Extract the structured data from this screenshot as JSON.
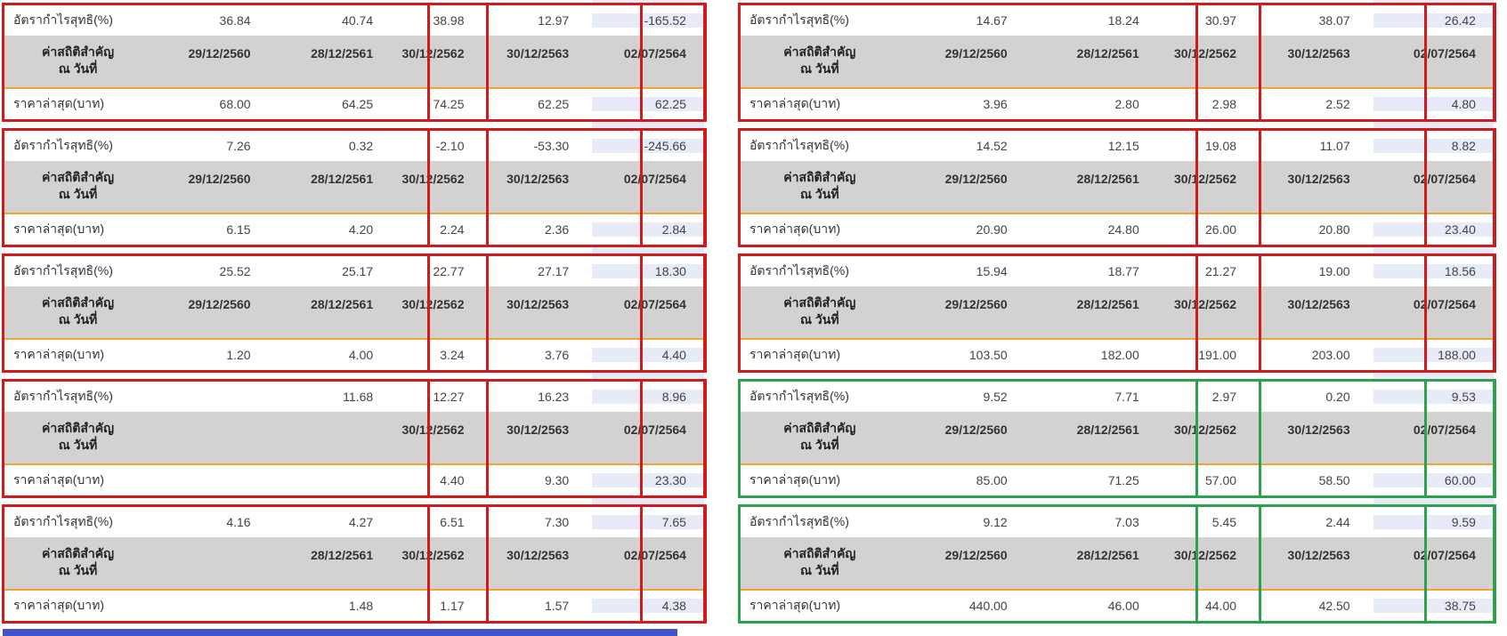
{
  "labels": {
    "margin": "อัตรากำไรสุทธิ(%)",
    "stats_line1": "ค่าสถิติสำคัญ",
    "stats_line2": "ณ วันที่",
    "price": "ราคาล่าสุด(บาท)"
  },
  "colors": {
    "red": "#cf1b1b",
    "green": "#2ba24b",
    "header_gray": "#d2d2d2",
    "orange": "#f0a433",
    "lavender": "#e6ebf7",
    "bottom_bar_blue": "#4253c9"
  },
  "tables": [
    {
      "id": "left-1",
      "column": "left",
      "slot": 0,
      "accent": "red",
      "margins": [
        "36.84",
        "40.74",
        "38.98",
        "12.97",
        "-165.52"
      ],
      "dates": [
        "29/12/2560",
        "28/12/2561",
        "30/12/2562",
        "30/12/2563",
        "02/07/2564"
      ],
      "prices": [
        "68.00",
        "64.25",
        "74.25",
        "62.25",
        "62.25"
      ]
    },
    {
      "id": "left-2",
      "column": "left",
      "slot": 1,
      "accent": "red",
      "margins": [
        "7.26",
        "0.32",
        "-2.10",
        "-53.30",
        "-245.66"
      ],
      "dates": [
        "29/12/2560",
        "28/12/2561",
        "30/12/2562",
        "30/12/2563",
        "02/07/2564"
      ],
      "prices": [
        "6.15",
        "4.20",
        "2.24",
        "2.36",
        "2.84"
      ]
    },
    {
      "id": "left-3",
      "column": "left",
      "slot": 2,
      "accent": "red",
      "margins": [
        "25.52",
        "25.17",
        "22.77",
        "27.17",
        "18.30"
      ],
      "dates": [
        "29/12/2560",
        "28/12/2561",
        "30/12/2562",
        "30/12/2563",
        "02/07/2564"
      ],
      "prices": [
        "1.20",
        "4.00",
        "3.24",
        "3.76",
        "4.40"
      ]
    },
    {
      "id": "left-4",
      "column": "left",
      "slot": 3,
      "accent": "red",
      "margins": [
        "",
        "11.68",
        "12.27",
        "16.23",
        "8.96"
      ],
      "dates": [
        "",
        "",
        "30/12/2562",
        "30/12/2563",
        "02/07/2564"
      ],
      "prices": [
        "",
        "",
        "4.40",
        "9.30",
        "23.30"
      ]
    },
    {
      "id": "left-5",
      "column": "left",
      "slot": 4,
      "accent": "red",
      "margins": [
        "4.16",
        "4.27",
        "6.51",
        "7.30",
        "7.65"
      ],
      "dates": [
        "",
        "28/12/2561",
        "30/12/2562",
        "30/12/2563",
        "02/07/2564"
      ],
      "prices": [
        "",
        "1.48",
        "1.17",
        "1.57",
        "4.38"
      ]
    },
    {
      "id": "right-1",
      "column": "right",
      "slot": 0,
      "accent": "red",
      "margins": [
        "14.67",
        "18.24",
        "30.97",
        "38.07",
        "26.42"
      ],
      "dates": [
        "29/12/2560",
        "28/12/2561",
        "30/12/2562",
        "30/12/2563",
        "02/07/2564"
      ],
      "prices": [
        "3.96",
        "2.80",
        "2.98",
        "2.52",
        "4.80"
      ]
    },
    {
      "id": "right-2",
      "column": "right",
      "slot": 1,
      "accent": "red",
      "margins": [
        "14.52",
        "12.15",
        "19.08",
        "11.07",
        "8.82"
      ],
      "dates": [
        "29/12/2560",
        "28/12/2561",
        "30/12/2562",
        "30/12/2563",
        "02/07/2564"
      ],
      "prices": [
        "20.90",
        "24.80",
        "26.00",
        "20.80",
        "23.40"
      ]
    },
    {
      "id": "right-3",
      "column": "right",
      "slot": 2,
      "accent": "red",
      "margins": [
        "15.94",
        "18.77",
        "21.27",
        "19.00",
        "18.56"
      ],
      "dates": [
        "29/12/2560",
        "28/12/2561",
        "30/12/2562",
        "30/12/2563",
        "02/07/2564"
      ],
      "prices": [
        "103.50",
        "182.00",
        "191.00",
        "203.00",
        "188.00"
      ]
    },
    {
      "id": "right-4",
      "column": "right",
      "slot": 3,
      "accent": "green",
      "margins": [
        "9.52",
        "7.71",
        "2.97",
        "0.20",
        "9.53"
      ],
      "dates": [
        "29/12/2560",
        "28/12/2561",
        "30/12/2562",
        "30/12/2563",
        "02/07/2564"
      ],
      "prices": [
        "85.00",
        "71.25",
        "57.00",
        "58.50",
        "60.00"
      ]
    },
    {
      "id": "right-5",
      "column": "right",
      "slot": 4,
      "accent": "green",
      "margins": [
        "9.12",
        "7.03",
        "5.45",
        "2.44",
        "9.59"
      ],
      "dates": [
        "29/12/2560",
        "28/12/2561",
        "30/12/2562",
        "30/12/2563",
        "02/07/2564"
      ],
      "prices": [
        "440.00",
        "46.00",
        "44.00",
        "42.50",
        "38.75"
      ]
    }
  ]
}
